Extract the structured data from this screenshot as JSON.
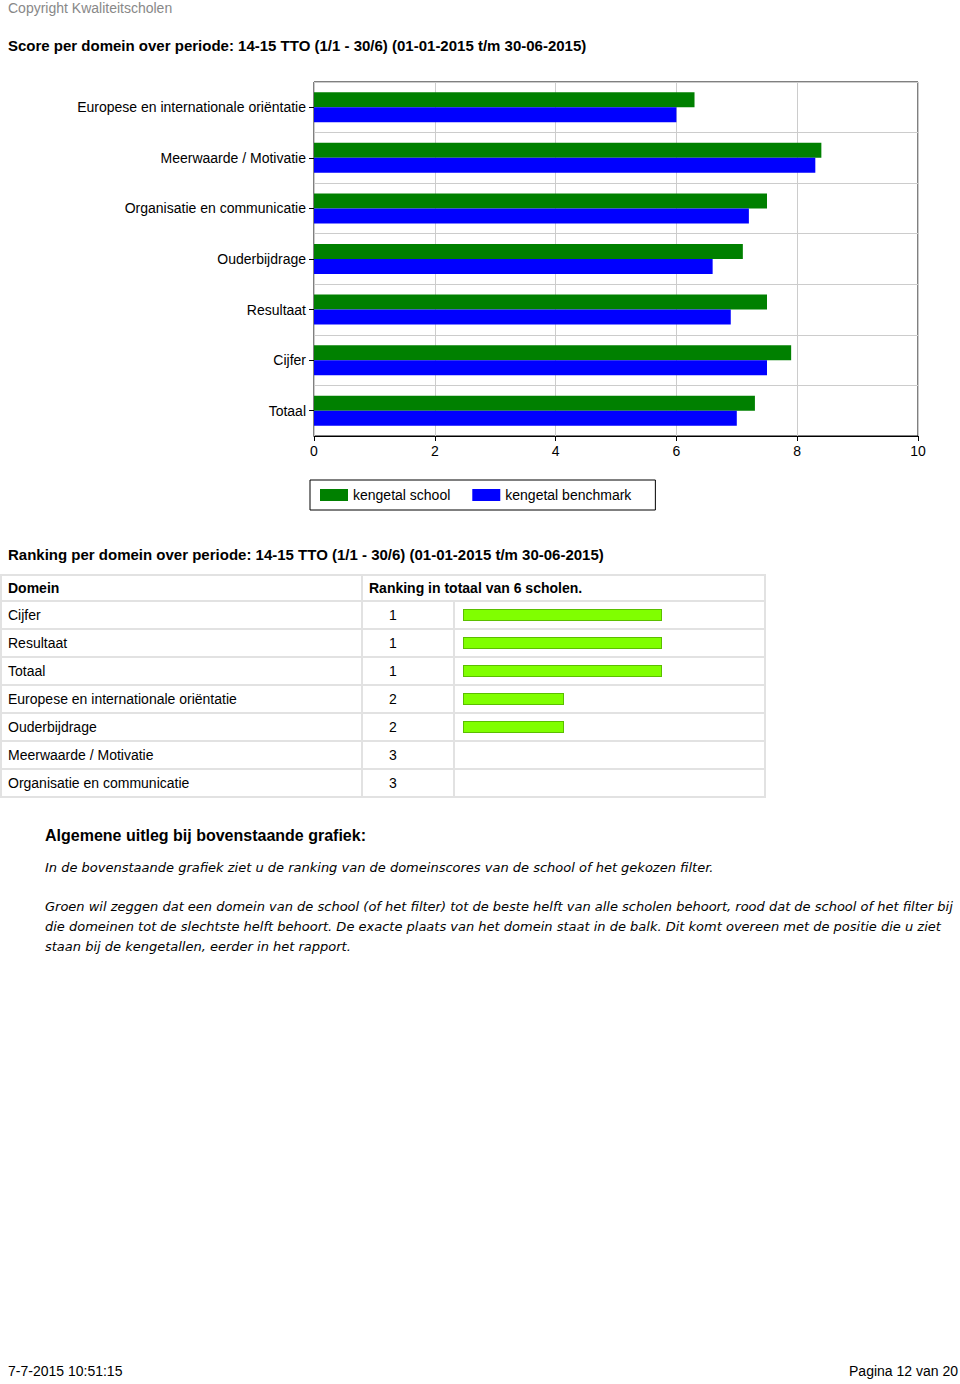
{
  "header": {
    "copyright": "Copyright Kwaliteitscholen"
  },
  "chart_data": {
    "type": "bar",
    "title": "Score per domein over periode: 14-15 TTO (1/1 - 30/6) (01-01-2015 t/m 30-06-2015)",
    "orientation": "horizontal",
    "categories": [
      "Europese en internationale oriëntatie",
      "Meerwaarde / Motivatie",
      "Organisatie en communicatie",
      "Ouderbijdrage",
      "Resultaat",
      "Cijfer",
      "Totaal"
    ],
    "series": [
      {
        "name": "kengetal school",
        "color": "#008000",
        "values": [
          6.3,
          8.4,
          7.5,
          7.1,
          7.5,
          7.9,
          7.3
        ]
      },
      {
        "name": "kengetal benchmark",
        "color": "#0000ff",
        "values": [
          6.0,
          8.3,
          7.2,
          6.6,
          6.9,
          7.5,
          7.0
        ]
      }
    ],
    "xlim": [
      0,
      10
    ],
    "xticks": [
      0,
      2,
      4,
      6,
      8,
      10
    ],
    "grid": true,
    "legend": "bottom"
  },
  "ranking": {
    "title": "Ranking per domein over periode: 14-15 TTO (1/1 - 30/6) (01-01-2015 t/m 30-06-2015)",
    "columns": [
      "Domein",
      "Ranking in totaal van 6 scholen."
    ],
    "rows": [
      [
        "Cijfer",
        1
      ],
      [
        "Resultaat",
        1
      ],
      [
        "Totaal",
        1
      ],
      [
        "Europese en internationale oriëntatie",
        2
      ],
      [
        "Ouderbijdrage",
        2
      ],
      [
        "Meerwaarde / Motivatie",
        3
      ],
      [
        "Organisatie en communicatie",
        3
      ]
    ],
    "bar_color": "#80ff00"
  },
  "explanation": {
    "title": "Algemene uitleg bij bovenstaande grafiek:",
    "paragraphs": [
      "In de bovenstaande grafiek ziet u de ranking van de domeinscores van de school of het gekozen filter.",
      "Groen wil zeggen dat een domein van de school (of het filter) tot de beste helft van alle scholen behoort, rood dat de school of het filter bij die domeinen tot de slechtste helft behoort. De exacte plaats van het domein staat in de balk. Dit komt overeen met de positie die u ziet staan bij de kengetallen, eerder in het rapport."
    ]
  },
  "footer": {
    "left": "7-7-2015 10:51:15",
    "right": "Pagina 12 van 20"
  }
}
